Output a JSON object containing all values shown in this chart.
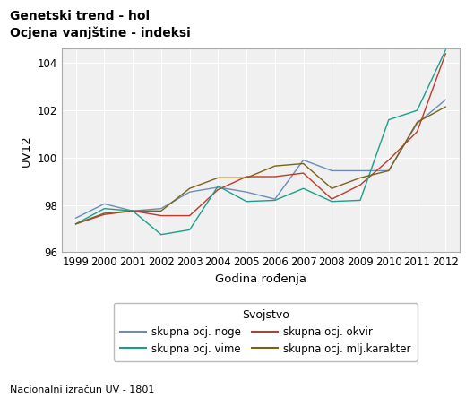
{
  "title1": "Genetski trend - hol",
  "title2": "Ocjena vanjštine - indeksi",
  "xlabel": "Godina rođenja",
  "ylabel": "UV12",
  "footnote": "Nacionalni izračun UV - 1801",
  "legend_title": "Svojstvo",
  "years": [
    1999,
    2000,
    2001,
    2002,
    2003,
    2004,
    2005,
    2006,
    2007,
    2008,
    2009,
    2010,
    2011,
    2012
  ],
  "series_order": [
    "skupna ocj. noge",
    "skupna ocj. okvir",
    "skupna ocj. vime",
    "skupna ocj. mlj.karakter"
  ],
  "series": {
    "skupna ocj. noge": {
      "color": "#6b8cba",
      "values": [
        97.45,
        98.05,
        97.75,
        97.85,
        98.55,
        98.75,
        98.55,
        98.25,
        99.9,
        99.45,
        99.45,
        99.45,
        101.45,
        102.45
      ]
    },
    "skupna ocj. okvir": {
      "color": "#c0392b",
      "values": [
        97.2,
        97.6,
        97.75,
        97.55,
        97.55,
        98.65,
        99.2,
        99.2,
        99.35,
        98.25,
        98.85,
        99.9,
        101.1,
        104.4
      ]
    },
    "skupna ocj. vime": {
      "color": "#1a9e8c",
      "values": [
        97.2,
        97.85,
        97.75,
        96.75,
        96.95,
        98.8,
        98.15,
        98.2,
        98.7,
        98.15,
        98.2,
        101.6,
        102.0,
        104.55
      ]
    },
    "skupna ocj. mlj.karakter": {
      "color": "#7a6218",
      "values": [
        97.2,
        97.65,
        97.75,
        97.75,
        98.7,
        99.15,
        99.15,
        99.65,
        99.75,
        98.7,
        99.15,
        99.45,
        101.5,
        102.15
      ]
    }
  },
  "ylim": [
    96,
    104.6
  ],
  "yticks": [
    96,
    98,
    100,
    102,
    104
  ],
  "background_color": "#ffffff",
  "plot_bg_color": "#f0f0f0",
  "grid_color": "#ffffff",
  "title_fontsize": 10,
  "axis_fontsize": 9.5,
  "tick_fontsize": 8.5,
  "legend_fontsize": 8.5,
  "legend_title_fontsize": 9
}
